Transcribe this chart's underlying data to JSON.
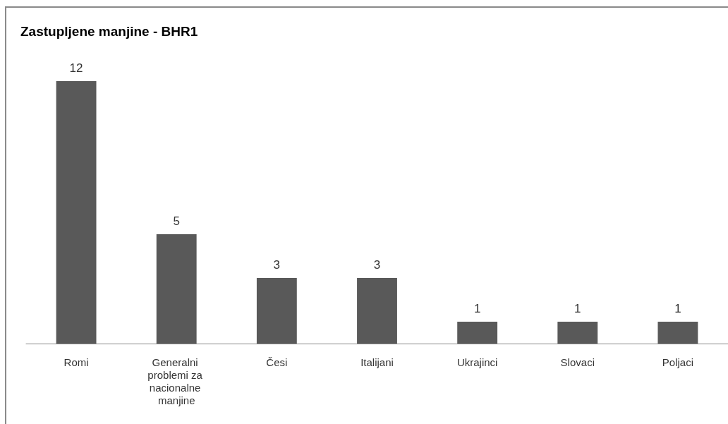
{
  "chart_data": {
    "type": "bar",
    "title": "Zastupljene manjine - BHR1",
    "categories": [
      "Romi",
      "Generalni problemi za nacionalne manjine",
      "Česi",
      "Italijani",
      "Ukrajinci",
      "Slovaci",
      "Poljaci"
    ],
    "values": [
      12,
      5,
      3,
      3,
      1,
      1,
      1
    ],
    "color": "#595959",
    "data_labels": true
  }
}
